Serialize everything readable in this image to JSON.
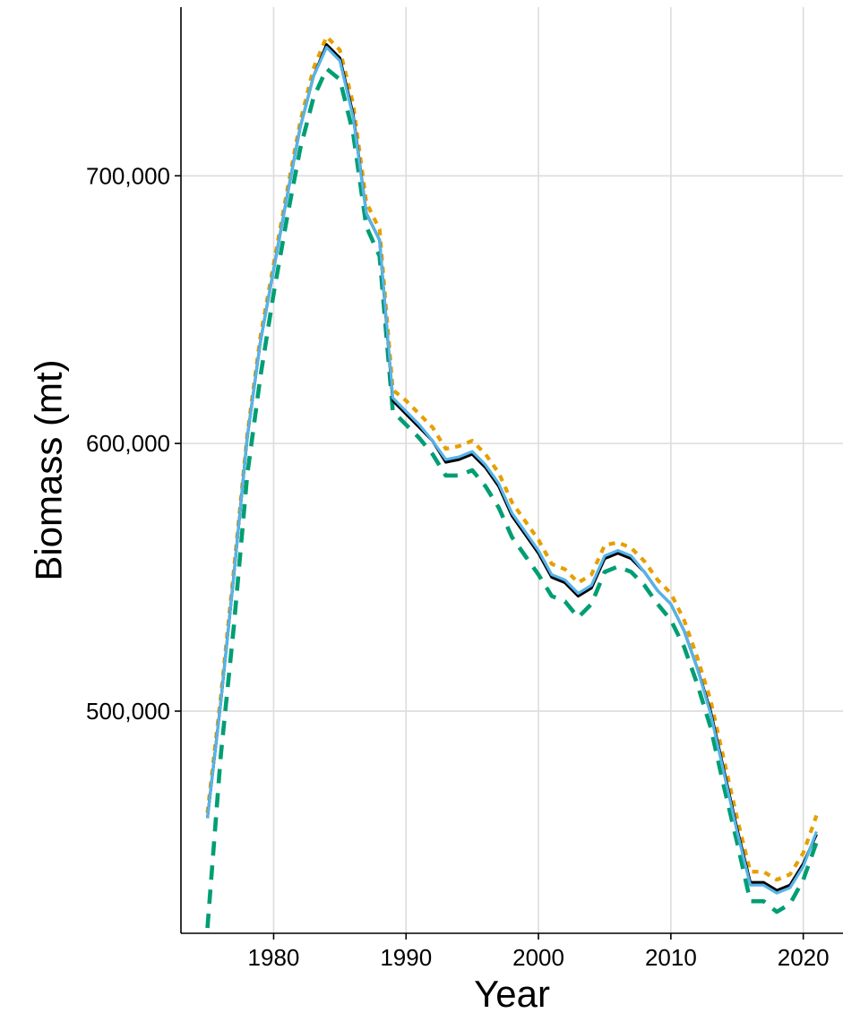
{
  "chart_data": {
    "type": "line",
    "title": "",
    "xlabel": "Year",
    "ylabel": "Biomass (mt)",
    "xlim": [
      1973,
      2023
    ],
    "ylim": [
      417000,
      763000
    ],
    "x_ticks": [
      1980,
      1990,
      2000,
      2010,
      2020
    ],
    "x_tick_labels": [
      "1980",
      "1990",
      "2000",
      "2010",
      "2020"
    ],
    "y_ticks": [
      500000,
      600000,
      700000
    ],
    "y_tick_labels": [
      "500,000",
      "600,000",
      "700,000"
    ],
    "grid": true,
    "legend": "none",
    "x": [
      1975,
      1976,
      1977,
      1978,
      1979,
      1980,
      1981,
      1982,
      1983,
      1984,
      1985,
      1986,
      1987,
      1988,
      1989,
      1990,
      1991,
      1992,
      1993,
      1994,
      1995,
      1996,
      1997,
      1998,
      1999,
      2000,
      2001,
      2002,
      2003,
      2004,
      2005,
      2006,
      2007,
      2008,
      2009,
      2010,
      2011,
      2012,
      2013,
      2014,
      2015,
      2016,
      2017,
      2018,
      2019,
      2020,
      2021
    ],
    "series": [
      {
        "color": "#000000",
        "style": "solid",
        "values": [
          460000,
          503000,
          551000,
          602000,
          638000,
          665000,
          692000,
          718000,
          737000,
          749000,
          744000,
          723000,
          686000,
          676000,
          616000,
          611000,
          606000,
          601000,
          593000,
          594000,
          596000,
          591000,
          584000,
          573000,
          566000,
          559000,
          550000,
          548000,
          543000,
          546000,
          557000,
          559000,
          557000,
          552000,
          545000,
          540000,
          530000,
          516000,
          500000,
          478000,
          456000,
          436000,
          436000,
          433000,
          435000,
          443000,
          454000
        ]
      },
      {
        "color": "#56B4E9",
        "style": "solid",
        "values": [
          460000,
          503000,
          551000,
          602000,
          638000,
          665000,
          692000,
          718000,
          737000,
          748000,
          743000,
          722000,
          686000,
          676000,
          617000,
          612000,
          607000,
          601000,
          594000,
          595000,
          597000,
          592000,
          585000,
          574000,
          567000,
          560000,
          551000,
          549000,
          544000,
          547000,
          558000,
          560000,
          558000,
          552000,
          545000,
          540000,
          530000,
          516000,
          499000,
          477000,
          455000,
          435000,
          435000,
          432000,
          434000,
          442000,
          455000
        ]
      },
      {
        "color": "#E69F00",
        "style": "dotted",
        "values": [
          462000,
          505000,
          553000,
          603000,
          640000,
          667000,
          694000,
          720000,
          740000,
          752000,
          747000,
          727000,
          690000,
          680000,
          620000,
          616000,
          611000,
          606000,
          598000,
          599000,
          601000,
          596000,
          589000,
          578000,
          571000,
          564000,
          555000,
          553000,
          548000,
          551000,
          562000,
          563000,
          561000,
          556000,
          549000,
          544000,
          534000,
          520000,
          504000,
          482000,
          460000,
          440000,
          440000,
          437000,
          439000,
          447000,
          461000
        ]
      },
      {
        "color": "#009E73",
        "style": "dashed",
        "values": [
          419000,
          483000,
          532000,
          588000,
          625000,
          656000,
          684000,
          710000,
          729000,
          740000,
          736000,
          716000,
          681000,
          670000,
          612000,
          607000,
          602000,
          596000,
          588000,
          588000,
          590000,
          584000,
          576000,
          565000,
          558000,
          551000,
          543000,
          541000,
          535000,
          540000,
          552000,
          554000,
          552000,
          547000,
          540000,
          534000,
          524000,
          510000,
          494000,
          472000,
          451000,
          429000,
          429000,
          425000,
          428000,
          437000,
          451000
        ]
      }
    ]
  }
}
